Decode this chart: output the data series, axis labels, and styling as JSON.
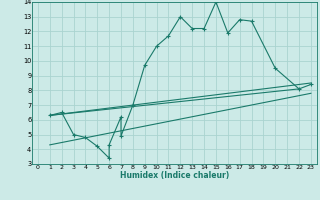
{
  "bg_color": "#cceae7",
  "grid_color": "#aad4d0",
  "line_color": "#1a7a6a",
  "xlabel": "Humidex (Indice chaleur)",
  "xlim": [
    -0.5,
    23.5
  ],
  "ylim": [
    3,
    14
  ],
  "xticks": [
    0,
    1,
    2,
    3,
    4,
    5,
    6,
    7,
    8,
    9,
    10,
    11,
    12,
    13,
    14,
    15,
    16,
    17,
    18,
    19,
    20,
    21,
    22,
    23
  ],
  "yticks": [
    3,
    4,
    5,
    6,
    7,
    8,
    9,
    10,
    11,
    12,
    13,
    14
  ],
  "line1_x": [
    1,
    2,
    3,
    4,
    5,
    6,
    6,
    7,
    7,
    8,
    9,
    10,
    11,
    12,
    13,
    14,
    15,
    16,
    17,
    18,
    20,
    22,
    23
  ],
  "line1_y": [
    6.3,
    6.5,
    5.0,
    4.8,
    4.2,
    3.4,
    4.3,
    6.2,
    4.9,
    7.0,
    9.7,
    11.0,
    11.7,
    13.0,
    12.2,
    12.2,
    14.0,
    11.9,
    12.8,
    12.7,
    9.5,
    8.1,
    8.4
  ],
  "line2_x": [
    1,
    23
  ],
  "line2_y": [
    6.3,
    8.5
  ],
  "line3_x": [
    1,
    22
  ],
  "line3_y": [
    6.3,
    8.1
  ],
  "line4_x": [
    1,
    23
  ],
  "line4_y": [
    4.3,
    7.8
  ]
}
